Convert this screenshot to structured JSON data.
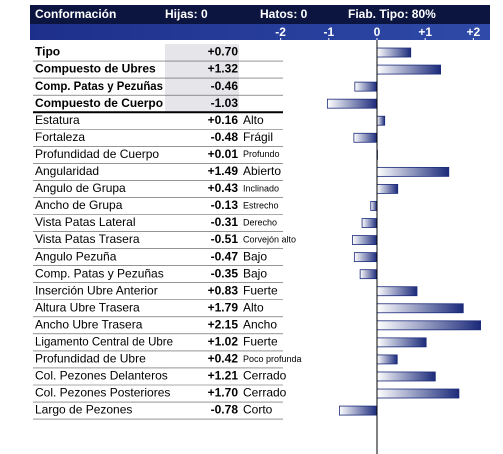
{
  "chart_data": {
    "type": "bar",
    "title": "Conformación",
    "daughters": "Hijas: 0",
    "herds": "Hatos: 0",
    "reliability": "Fiab. Tipo: 80%",
    "xlim": [
      -2.2,
      2.2
    ],
    "xticks": [
      -2,
      -1,
      0,
      {
        "value": 1,
        "label": "+1"
      },
      {
        "value": 2,
        "label": "+2"
      }
    ],
    "color": "#1b2a7a",
    "summary": {
      "categories": [
        "Tipo",
        "Compuesto de Ubres",
        "Comp. Patas y Pezuñas",
        "Compuesto de Cuerpo"
      ],
      "values": [
        0.7,
        1.32,
        -0.46,
        -1.03
      ],
      "value_labels": [
        "+0.70",
        "+1.32",
        "-0.46",
        "-1.03"
      ]
    },
    "traits": {
      "categories": [
        "Estatura",
        "Fortaleza",
        "Profundidad de Cuerpo",
        "Angularidad",
        "Angulo de Grupa",
        "Ancho de Grupa",
        "Vista Patas Lateral",
        "Vista Patas Trasera",
        "Angulo Pezuña",
        "Comp. Patas y Pezuñas",
        "Inserción Ubre Anterior",
        "Altura Ubre Trasera",
        "Ancho Ubre Trasera",
        "Ligamento Central de Ubre",
        "Profundidad de Ubre",
        "Col. Pezones Delanteros",
        "Col. Pezones Posteriores",
        "Largo de Pezones"
      ],
      "values": [
        0.16,
        -0.48,
        0.01,
        1.49,
        0.43,
        -0.13,
        -0.31,
        -0.51,
        -0.47,
        -0.35,
        0.83,
        1.79,
        2.15,
        1.02,
        0.42,
        1.21,
        1.7,
        -0.78
      ],
      "value_labels": [
        "+0.16",
        "-0.48",
        "+0.01",
        "+1.49",
        "+0.43",
        "-0.13",
        "-0.31",
        "-0.51",
        "-0.47",
        "-0.35",
        "+0.83",
        "+1.79",
        "+2.15",
        "+1.02",
        "+0.42",
        "+1.21",
        "+1.70",
        "-0.78"
      ],
      "descriptors": [
        "Alto",
        "Frágil",
        "Profundo",
        "Abierto",
        "Inclinado",
        "Estrecho",
        "Derecho",
        "Corvejón alto",
        "Bajo",
        "Bajo",
        "Fuerte",
        "Alto",
        "Ancho",
        "Fuerte",
        "Poco profunda",
        "Cerrado",
        "Cerrado",
        "Corto"
      ]
    }
  }
}
